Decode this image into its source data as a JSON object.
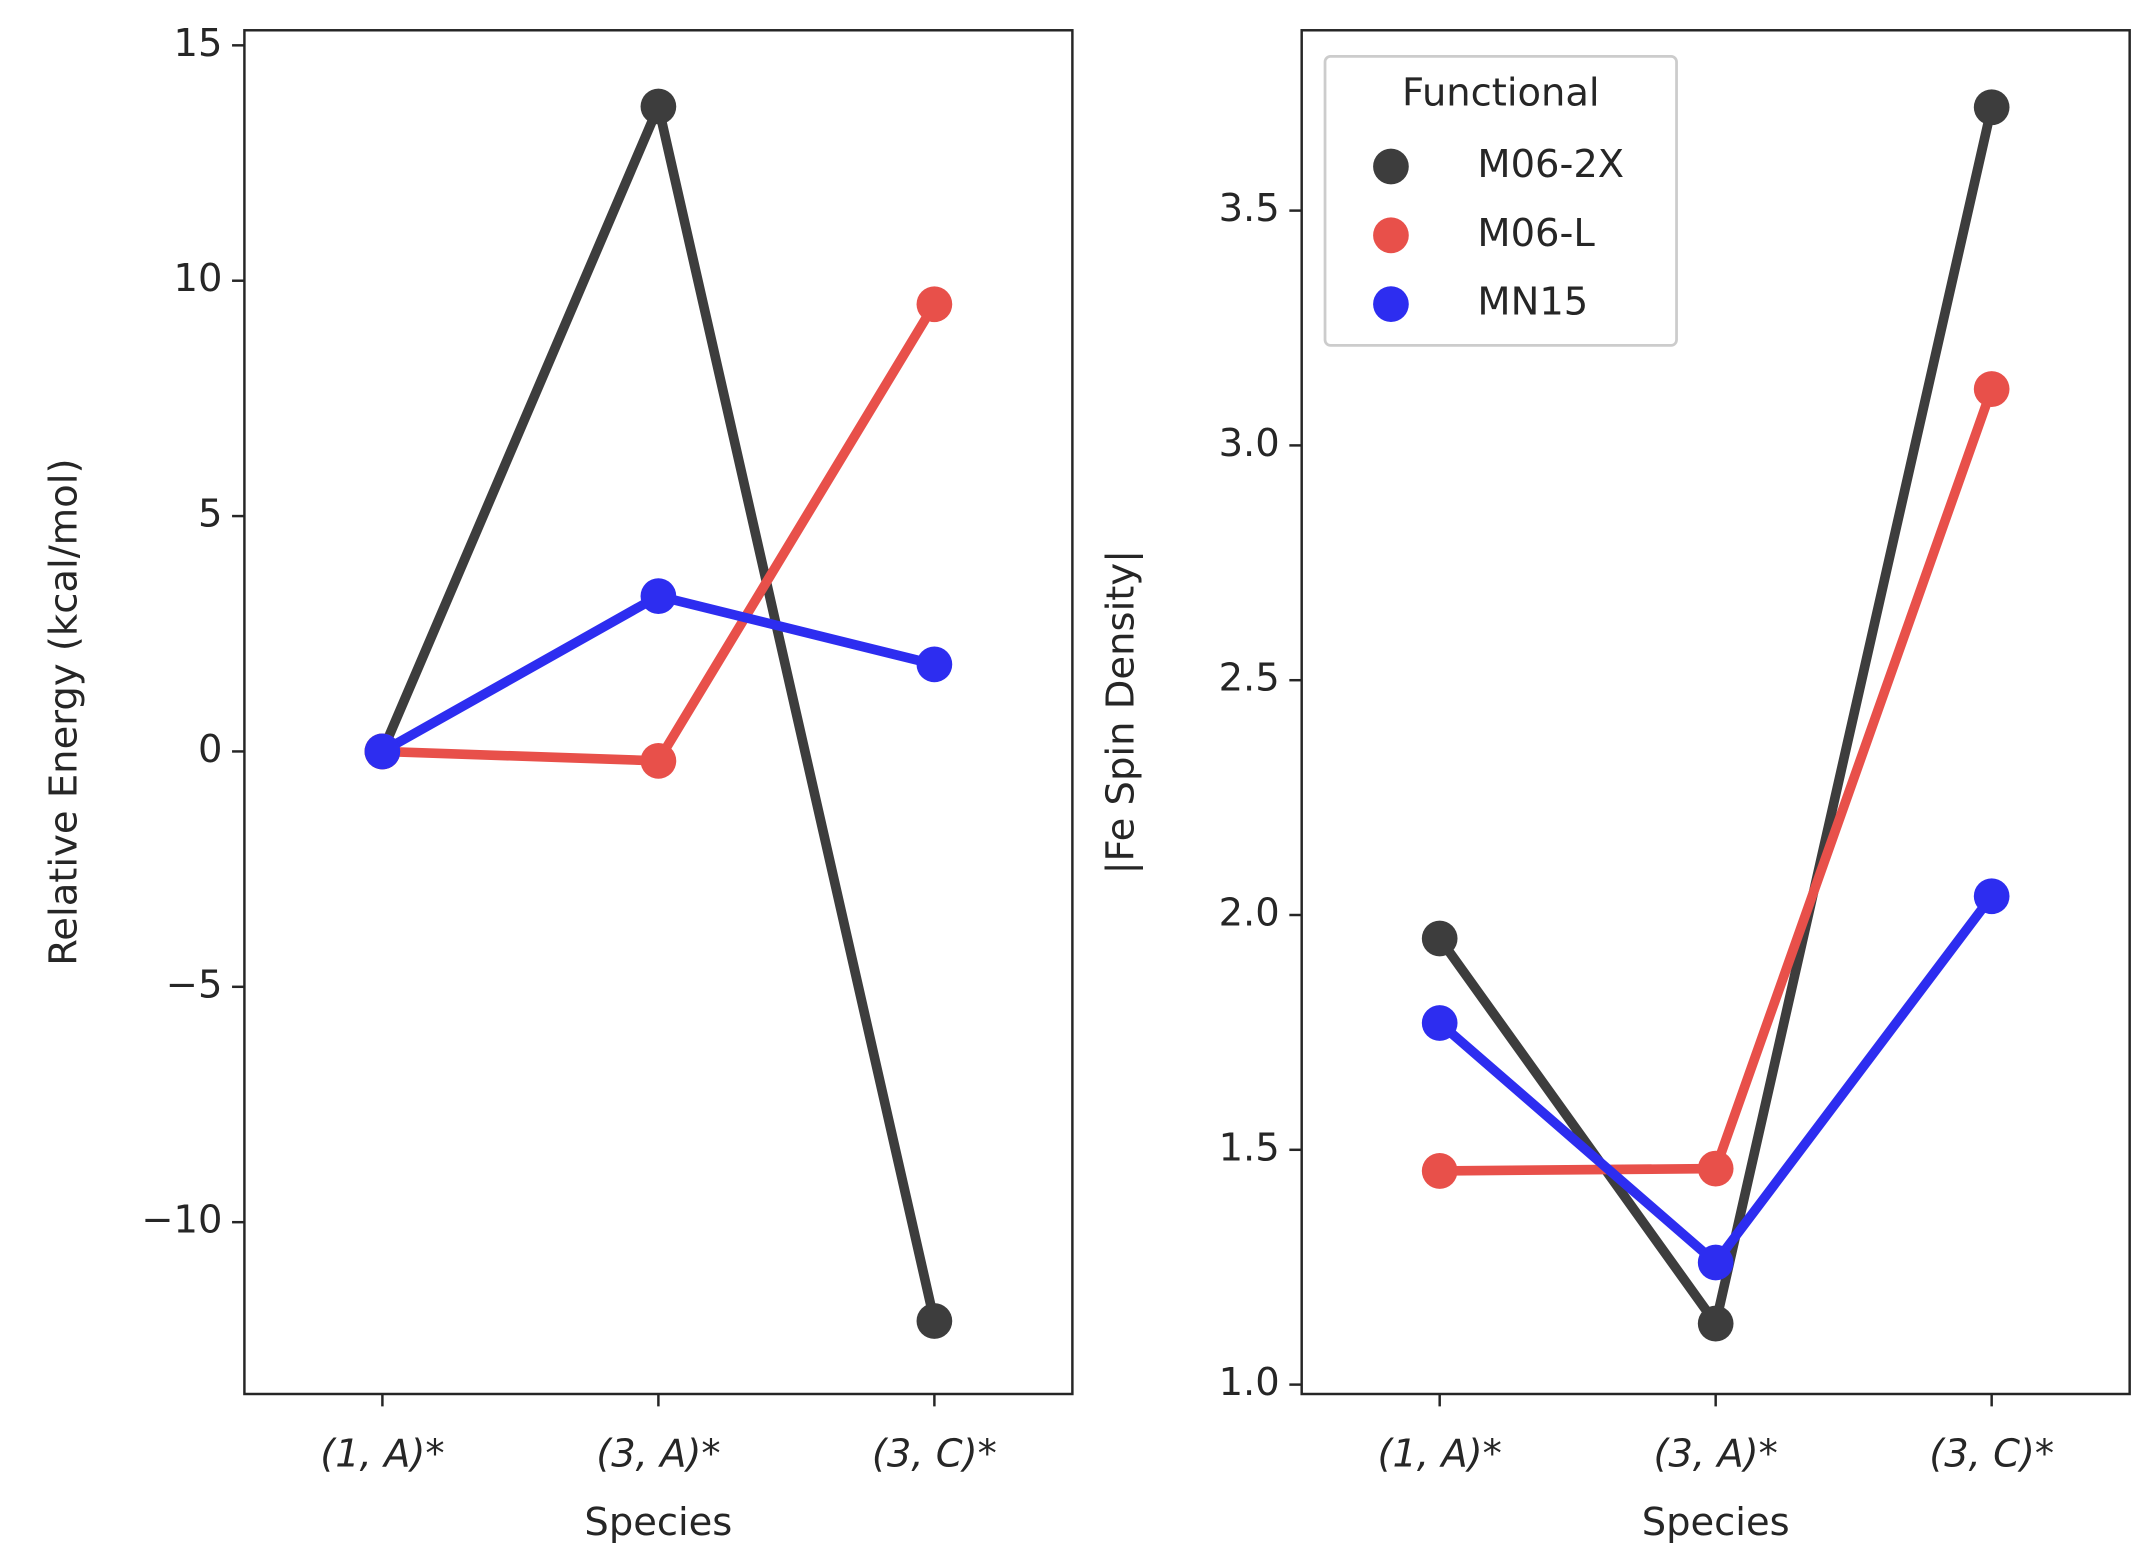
{
  "chart_data": [
    {
      "type": "line",
      "x_label": "Species",
      "y_label": "Relative Energy (kcal/mol)",
      "categories": [
        "(1, A)*",
        "(3, A)*",
        "(3, C)*"
      ],
      "series": [
        {
          "name": "M06-2X",
          "color": "#3d3d3d",
          "values": [
            0,
            13.7,
            -12.1
          ]
        },
        {
          "name": "M06-L",
          "color": "#e8504a",
          "values": [
            0,
            -0.2,
            9.5
          ]
        },
        {
          "name": "MN15",
          "color": "#2d2df0",
          "values": [
            0,
            3.3,
            1.85
          ]
        }
      ],
      "ylim": [
        -13.65,
        15.32
      ],
      "yticks": [
        {
          "value": -10,
          "label": "−10"
        },
        {
          "value": -5,
          "label": "−5"
        },
        0,
        5,
        10,
        15
      ]
    },
    {
      "type": "line",
      "x_label": "Species",
      "y_label": "|Fe Spin Density|",
      "categories": [
        "(1, A)*",
        "(3, A)*",
        "(3, C)*"
      ],
      "series": [
        {
          "name": "M06-2X",
          "color": "#3d3d3d",
          "values": [
            1.95,
            1.13,
            3.72
          ]
        },
        {
          "name": "M06-L",
          "color": "#e8504a",
          "values": [
            1.455,
            1.46,
            3.12
          ]
        },
        {
          "name": "MN15",
          "color": "#2d2df0",
          "values": [
            1.77,
            1.26,
            2.04
          ]
        }
      ],
      "ylim": [
        0.98,
        3.884
      ],
      "yticks": [
        {
          "value": 1.0,
          "label": "1.0"
        },
        1.5,
        {
          "value": 2.0,
          "label": "2.0"
        },
        2.5,
        {
          "value": 3.0,
          "label": "3.0"
        },
        3.5
      ],
      "legend": "upper left",
      "legend_title": "Functional"
    }
  ]
}
